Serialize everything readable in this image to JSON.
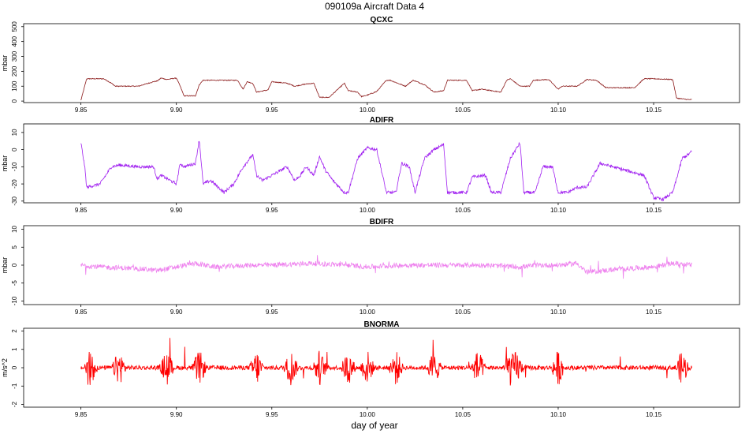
{
  "figure": {
    "title": "090109a   Aircraft Data 4",
    "xlabel": "day of year"
  },
  "chart_data": [
    {
      "type": "line",
      "title": "QCXC",
      "ylabel": "mbar",
      "xlim": [
        9.82,
        10.195
      ],
      "ylim": [
        -10,
        520
      ],
      "xticks": [
        9.85,
        9.9,
        9.95,
        10.0,
        10.05,
        10.1,
        10.15
      ],
      "xtick_labels": [
        "9.85",
        "9.90",
        "9.95",
        "10.00",
        "10.05",
        "10.10",
        "10.15"
      ],
      "yticks": [
        0,
        100,
        200,
        300,
        400,
        500
      ],
      "ytick_labels": [
        "0",
        "100",
        "200",
        "300",
        "400",
        "500"
      ],
      "color": "#8B1A1A",
      "noise": 3,
      "series": [
        {
          "name": "QCXC",
          "x": [
            9.85,
            9.853,
            9.862,
            9.866,
            9.868,
            9.88,
            9.888,
            9.89,
            9.892,
            9.895,
            9.9,
            9.902,
            9.904,
            9.91,
            9.912,
            9.914,
            9.918,
            9.932,
            9.935,
            9.937,
            9.94,
            9.942,
            9.948,
            9.95,
            9.958,
            9.962,
            9.968,
            9.972,
            9.975,
            9.98,
            9.988,
            9.99,
            9.995,
            9.997,
            10.0,
            10.005,
            10.01,
            10.012,
            10.02,
            10.024,
            10.03,
            10.035,
            10.04,
            10.042,
            10.052,
            10.055,
            10.06,
            10.065,
            10.07,
            10.073,
            10.075,
            10.08,
            10.085,
            10.087,
            10.095,
            10.1,
            10.102,
            10.11,
            10.115,
            10.12,
            10.125,
            10.14,
            10.145,
            10.15,
            10.16,
            10.162,
            10.168,
            10.17
          ],
          "y": [
            5,
            150,
            150,
            120,
            100,
            100,
            130,
            135,
            155,
            145,
            155,
            100,
            35,
            35,
            110,
            140,
            140,
            140,
            80,
            130,
            120,
            60,
            75,
            130,
            120,
            100,
            115,
            120,
            25,
            25,
            120,
            70,
            60,
            30,
            40,
            65,
            140,
            140,
            100,
            140,
            110,
            60,
            70,
            140,
            140,
            70,
            80,
            70,
            60,
            140,
            150,
            100,
            100,
            140,
            145,
            80,
            100,
            100,
            145,
            140,
            90,
            90,
            150,
            150,
            145,
            20,
            10,
            10
          ]
        }
      ]
    },
    {
      "type": "line",
      "title": "ADIFR",
      "ylabel": "mbar",
      "xlim": [
        9.82,
        10.195
      ],
      "ylim": [
        -31,
        15
      ],
      "xticks": [
        9.85,
        9.9,
        9.95,
        10.0,
        10.05,
        10.1,
        10.15
      ],
      "xtick_labels": [
        "9.85",
        "9.90",
        "9.95",
        "10.00",
        "10.05",
        "10.10",
        "10.15"
      ],
      "yticks": [
        -30,
        -20,
        -10,
        0,
        10
      ],
      "ytick_labels": [
        "-30",
        "-20",
        "-10",
        "0",
        "10"
      ],
      "color": "#A020F0",
      "noise": 0.9,
      "series": [
        {
          "name": "ADIFR",
          "x": [
            9.85,
            9.852,
            9.853,
            9.86,
            9.866,
            9.87,
            9.88,
            9.888,
            9.89,
            9.892,
            9.9,
            9.902,
            9.904,
            9.91,
            9.912,
            9.914,
            9.918,
            9.925,
            9.93,
            9.935,
            9.94,
            9.942,
            9.945,
            9.95,
            9.958,
            9.962,
            9.965,
            9.968,
            9.972,
            9.975,
            9.978,
            9.982,
            9.988,
            9.99,
            9.995,
            10.0,
            10.005,
            10.01,
            10.015,
            10.018,
            10.022,
            10.025,
            10.03,
            10.035,
            10.04,
            10.042,
            10.052,
            10.055,
            10.062,
            10.065,
            10.07,
            10.075,
            10.08,
            10.082,
            10.088,
            10.092,
            10.097,
            10.1,
            10.105,
            10.11,
            10.115,
            10.122,
            10.145,
            10.15,
            10.155,
            10.16,
            10.165,
            10.168,
            10.17
          ],
          "y": [
            4,
            -10,
            -22,
            -20,
            -10,
            -9,
            -10,
            -10,
            -17,
            -15,
            -20,
            -8,
            -10,
            -8,
            6,
            -20,
            -18,
            -25,
            -20,
            -10,
            -3,
            -15,
            -18,
            -15,
            -10,
            -18,
            -15,
            -10,
            -15,
            -4,
            -12,
            -18,
            -25,
            -25,
            -5,
            1,
            0,
            -25,
            -25,
            -8,
            -10,
            -25,
            -5,
            0,
            3,
            -25,
            -25,
            -16,
            -15,
            -25,
            -25,
            -5,
            4,
            -25,
            -25,
            -10,
            -10,
            -25,
            -25,
            -22,
            -22,
            -8,
            -15,
            -28,
            -29,
            -25,
            -5,
            -3,
            -1
          ]
        }
      ]
    },
    {
      "type": "line",
      "title": "BDIFR",
      "ylabel": "mbar",
      "xlim": [
        9.82,
        10.195
      ],
      "ylim": [
        -11,
        11
      ],
      "xticks": [
        9.85,
        9.9,
        9.95,
        10.0,
        10.05,
        10.1,
        10.15
      ],
      "xtick_labels": [
        "9.85",
        "9.90",
        "9.95",
        "10.00",
        "10.05",
        "10.10",
        "10.15"
      ],
      "yticks": [
        -10,
        -5,
        0,
        5,
        10
      ],
      "ytick_labels": [
        "-10",
        "-5",
        "0",
        "5",
        "10"
      ],
      "color": "#EE82EE",
      "noise": 0.7,
      "series": [
        {
          "name": "BDIFR",
          "x": [
            9.85,
            9.86,
            9.88,
            9.89,
            9.9,
            9.91,
            9.92,
            9.94,
            9.95,
            9.97,
            9.99,
            10.0,
            10.02,
            10.04,
            10.06,
            10.08,
            10.09,
            10.1,
            10.11,
            10.115,
            10.13,
            10.15,
            10.16,
            10.17
          ],
          "y": [
            0,
            -0.5,
            -1,
            -1.5,
            -0.5,
            0.5,
            -0.5,
            0,
            0,
            0.5,
            0,
            -0.5,
            0,
            0,
            0,
            -0.5,
            0,
            0,
            0.5,
            -2,
            -1.2,
            -0.5,
            0.5,
            0
          ]
        }
      ]
    },
    {
      "type": "line",
      "title": "BNORMA",
      "ylabel": "m/s^2",
      "xlim": [
        9.82,
        10.195
      ],
      "ylim": [
        -2.15,
        2.15
      ],
      "xticks": [
        9.85,
        9.9,
        9.95,
        10.0,
        10.05,
        10.1,
        10.15
      ],
      "xtick_labels": [
        "9.85",
        "9.90",
        "9.95",
        "10.00",
        "10.05",
        "10.10",
        "10.15"
      ],
      "yticks": [
        -2,
        -1,
        0,
        1,
        2
      ],
      "ytick_labels": [
        "-2",
        "-1",
        "0",
        "1",
        "2"
      ],
      "color": "#FF0000",
      "noise": 0.12,
      "series": [
        {
          "name": "BNORMA",
          "x": [
            9.85,
            10.17
          ],
          "y": [
            0,
            0
          ]
        }
      ]
    }
  ]
}
